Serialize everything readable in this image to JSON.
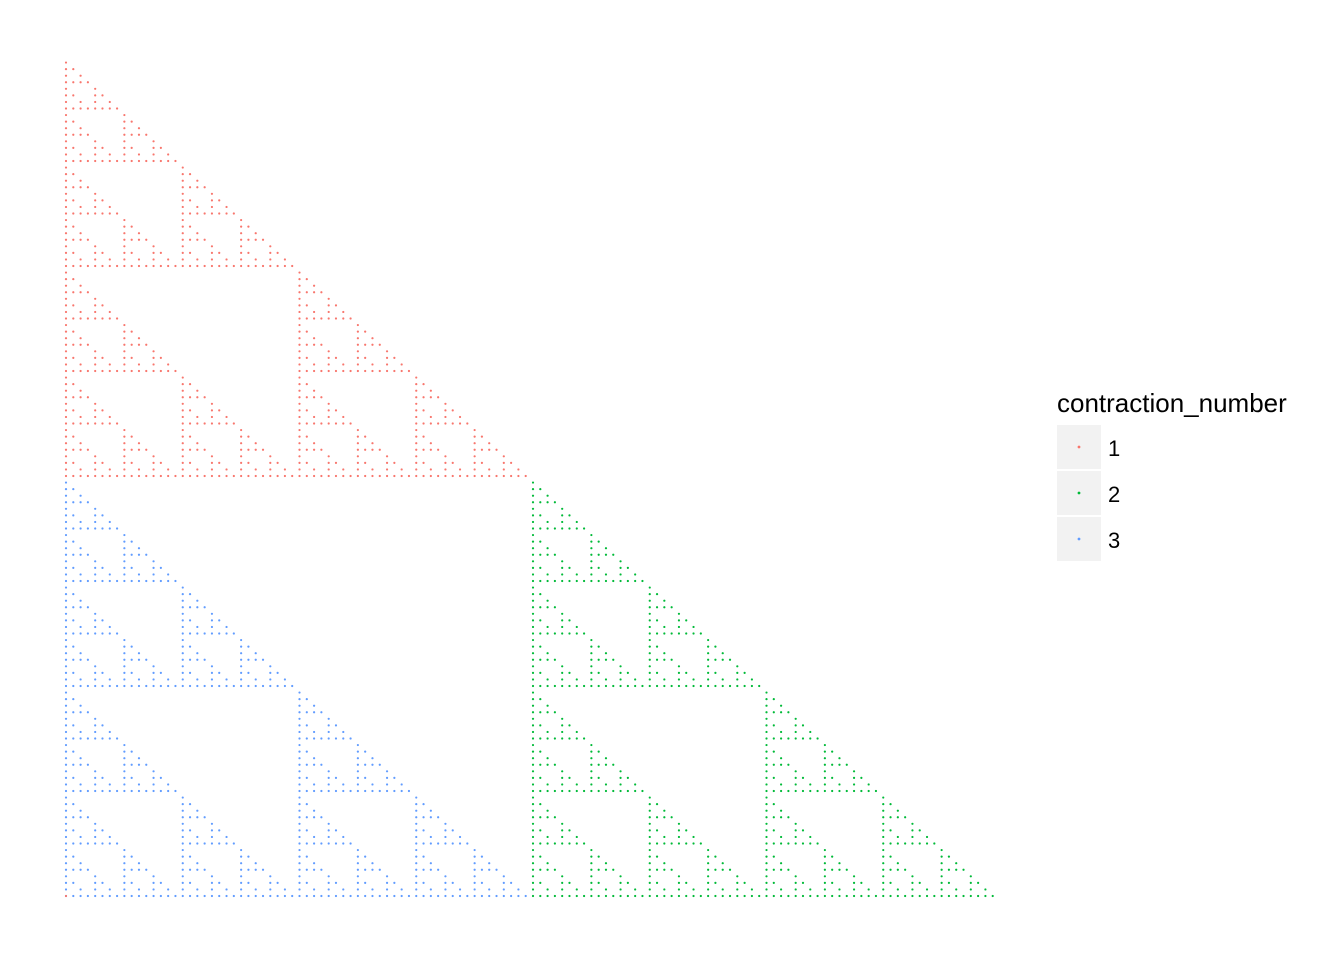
{
  "chart_data": {
    "type": "scatter",
    "title": "",
    "xlabel": "",
    "ylabel": "",
    "grid": false,
    "axes": "hidden",
    "description_of_generator": "Chaos-game points of a sheared Sierpinski triangle; each point colored by the contraction map applied last",
    "vertices": {
      "1": [
        0,
        1
      ],
      "2": [
        1,
        0
      ],
      "3": [
        0,
        0
      ]
    },
    "xlim": [
      0,
      1
    ],
    "ylim": [
      0,
      1
    ],
    "iterations_per_series": 729,
    "series": [
      {
        "name": "1",
        "contraction": "1",
        "color": "#F8766D"
      },
      {
        "name": "2",
        "contraction": "2",
        "color": "#00BA38"
      },
      {
        "name": "3",
        "contraction": "3",
        "color": "#619CFF"
      }
    ],
    "legend": {
      "title": "contraction_number",
      "position": "right",
      "entries": [
        {
          "label": "1",
          "color": "#F8766D"
        },
        {
          "label": "2",
          "color": "#00BA38"
        },
        {
          "label": "3",
          "color": "#619CFF"
        }
      ]
    }
  }
}
